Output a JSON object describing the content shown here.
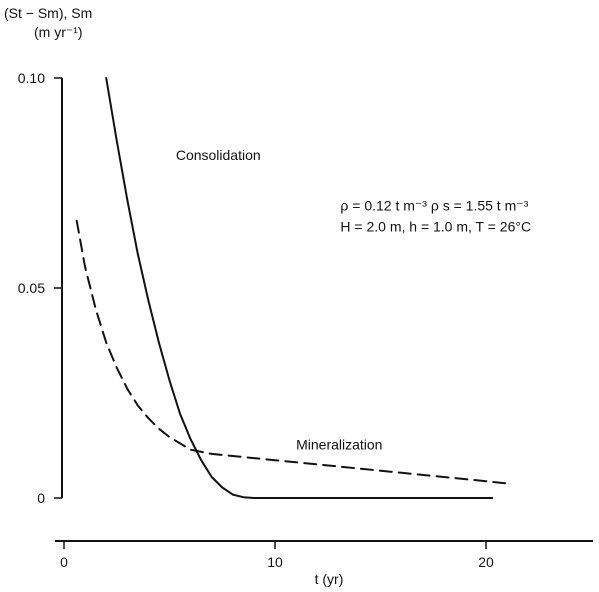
{
  "chart_data": {
    "type": "line",
    "ylabel_line1": "(St − Sm), Sm",
    "ylabel_line2": "(m yr⁻¹)",
    "xlabel": "t (yr)",
    "xlim": [
      0,
      25
    ],
    "ylim": [
      0,
      0.1
    ],
    "xticks": [
      0,
      10,
      20
    ],
    "xtick_labels": [
      "0",
      "10",
      "20"
    ],
    "yticks": [
      0,
      0.05,
      0.1
    ],
    "ytick_labels": [
      "0",
      "0.05",
      "0.10"
    ],
    "grid": false,
    "series": [
      {
        "name": "Consolidation",
        "style": "solid",
        "color": "#111111",
        "x": [
          2.0,
          2.5,
          3.0,
          3.5,
          4.0,
          4.5,
          5.0,
          5.5,
          6.0,
          6.5,
          7.0,
          7.5,
          8.0,
          8.5,
          9.0,
          10.0,
          12.0,
          15.0,
          18.0,
          20.3
        ],
        "y": [
          0.1,
          0.085,
          0.071,
          0.058,
          0.047,
          0.037,
          0.028,
          0.02,
          0.014,
          0.009,
          0.005,
          0.0025,
          0.0008,
          0.0002,
          0.0,
          0.0,
          0.0,
          0.0,
          0.0,
          0.0
        ]
      },
      {
        "name": "Mineralization",
        "style": "dashed",
        "color": "#111111",
        "x": [
          0.6,
          1.0,
          1.5,
          2.0,
          2.5,
          3.0,
          3.5,
          4.0,
          4.5,
          5.0,
          5.5,
          6.0,
          7.0,
          8.0,
          10.0,
          12.0,
          14.0,
          16.0,
          18.0,
          20.0,
          20.9
        ],
        "y": [
          0.066,
          0.055,
          0.045,
          0.037,
          0.031,
          0.026,
          0.022,
          0.019,
          0.0165,
          0.0145,
          0.013,
          0.0115,
          0.0105,
          0.01,
          0.009,
          0.008,
          0.007,
          0.006,
          0.005,
          0.004,
          0.0035
        ]
      }
    ],
    "annotations": [
      {
        "text": "Consolidation",
        "x": 5.3,
        "y": 0.0805
      },
      {
        "text": "Mineralization",
        "x": 11.0,
        "y": 0.0115
      },
      {
        "text": "ρ  = 0.12 t m⁻³ ρ s = 1.55 t m⁻³",
        "x": 13.1,
        "y": 0.0685
      },
      {
        "text": "H  = 2.0 m, h = 1.0 m, T = 26°C",
        "x": 13.1,
        "y": 0.0635
      }
    ]
  }
}
